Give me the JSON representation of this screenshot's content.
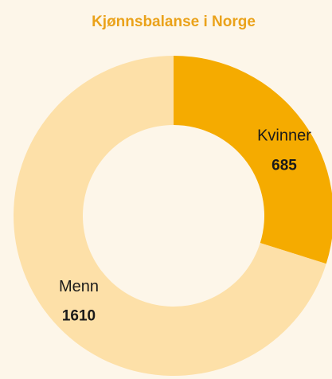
{
  "chart_data": {
    "type": "donut",
    "title": "Kjønnsbalanse i Norge",
    "categories": [
      "Kvinner",
      "Menn"
    ],
    "values": [
      685,
      1610
    ],
    "colors": [
      "#f5ab00",
      "#fde0a8"
    ]
  }
}
